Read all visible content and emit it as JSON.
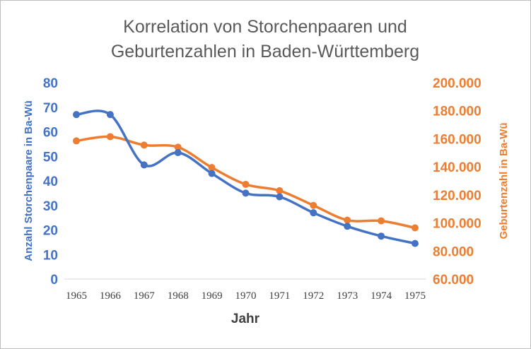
{
  "chart_data": {
    "type": "line",
    "title_lines": [
      "Korrelation von Storchenpaaren und",
      "Geburtenzahlen in Baden-Württemberg"
    ],
    "xlabel": "Jahr",
    "ylabel_left": "Anzahl Storchenpaare in Ba-Wü",
    "ylabel_right": "Geburtenzahl in Ba-Wü",
    "categories": [
      "1965",
      "1966",
      "1967",
      "1968",
      "1969",
      "1970",
      "1971",
      "1972",
      "1973",
      "1974",
      "1975"
    ],
    "y_left": {
      "lim": [
        0,
        80
      ],
      "ticks": [
        "0",
        "10",
        "20",
        "30",
        "40",
        "50",
        "60",
        "70",
        "80"
      ],
      "color": "#4472c4"
    },
    "y_right": {
      "lim": [
        60000,
        200000
      ],
      "ticks": [
        "60.000",
        "80.000",
        "100.000",
        "120.000",
        "140.000",
        "160.000",
        "180.000",
        "200.000"
      ],
      "color": "#ed7d31"
    },
    "grid": false,
    "legend": "none",
    "series": [
      {
        "axis": "left",
        "color": "#4472c4",
        "values": [
          67,
          67,
          46.5,
          51.5,
          43,
          35,
          33.5,
          27,
          21.5,
          17.5,
          14.5
        ]
      },
      {
        "axis": "right",
        "color": "#ed7d31",
        "values": [
          158500,
          161500,
          155500,
          154000,
          139500,
          127500,
          123000,
          112500,
          102000,
          101500,
          96500
        ]
      }
    ]
  }
}
